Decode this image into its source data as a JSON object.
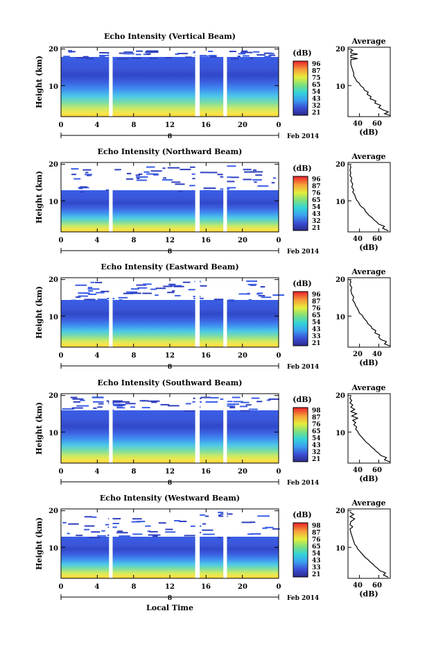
{
  "figure": {
    "bottom_xlabel": "Local Time",
    "date_label": "Feb 2014",
    "date_marker": "8"
  },
  "chart_data": [
    {
      "type": "heatmap",
      "title": "Echo Intensity (Vertical Beam)",
      "ylabel": "Height (km)",
      "xlabel": "",
      "x_ticks": [
        "0",
        "4",
        "8",
        "12",
        "16",
        "20",
        "0"
      ],
      "y_ticks": [
        "10",
        "20"
      ],
      "xlim": [
        0,
        24
      ],
      "ylim": [
        1.5,
        20.5
      ],
      "colorbar": {
        "unit": "(dB)",
        "ticks": [
          "96",
          "87",
          "75",
          "65",
          "54",
          "43",
          "32",
          "21"
        ]
      },
      "gaps_hours": [
        [
          5.3,
          5.7
        ],
        [
          14.8,
          15.3
        ],
        [
          17.9,
          18.3
        ]
      ],
      "profile": {
        "title": "Average",
        "xlabel": "(dB)",
        "x_ticks": [
          "40",
          "60"
        ],
        "xlim": [
          28,
          72
        ],
        "y_ticks": [
          "10",
          "20"
        ],
        "points": [
          [
            72,
            1.8
          ],
          [
            66,
            2.3
          ],
          [
            70,
            2.8
          ],
          [
            64,
            3.4
          ],
          [
            60,
            4.0
          ],
          [
            62,
            4.6
          ],
          [
            56,
            5.2
          ],
          [
            57,
            5.8
          ],
          [
            51,
            6.4
          ],
          [
            52,
            7.0
          ],
          [
            48,
            7.6
          ],
          [
            49,
            8.2
          ],
          [
            45,
            8.8
          ],
          [
            44,
            9.4
          ],
          [
            41,
            10.0
          ],
          [
            40,
            10.6
          ],
          [
            37,
            11.2
          ],
          [
            36,
            11.8
          ],
          [
            34,
            12.6
          ],
          [
            34,
            13.4
          ],
          [
            33,
            14.2
          ],
          [
            32,
            15.0
          ],
          [
            31,
            15.8
          ],
          [
            31,
            16.6
          ],
          [
            31,
            17.1
          ],
          [
            38,
            17.4
          ],
          [
            31,
            17.7
          ],
          [
            31,
            18.3
          ],
          [
            38,
            18.6
          ],
          [
            31,
            18.9
          ],
          [
            31,
            19.4
          ],
          [
            33,
            19.6
          ],
          [
            31,
            19.9
          ]
        ]
      }
    },
    {
      "type": "heatmap",
      "title": "Echo Intensity (Northward Beam)",
      "ylabel": "Height (km)",
      "xlabel": "",
      "x_ticks": [
        "0",
        "4",
        "8",
        "12",
        "16",
        "20",
        "0"
      ],
      "y_ticks": [
        "10",
        "20"
      ],
      "xlim": [
        0,
        24
      ],
      "ylim": [
        1.5,
        20.5
      ],
      "colorbar": {
        "unit": "(dB)",
        "ticks": [
          "96",
          "87",
          "76",
          "65",
          "54",
          "43",
          "32",
          "21"
        ]
      },
      "gaps_hours": [
        [
          5.3,
          5.7
        ],
        [
          14.8,
          15.3
        ],
        [
          17.9,
          18.3
        ]
      ],
      "profile": {
        "title": "Average",
        "xlabel": "(dB)",
        "x_ticks": [
          "40",
          "60"
        ],
        "xlim": [
          28,
          72
        ],
        "y_ticks": [
          "10",
          "20"
        ],
        "points": [
          [
            70,
            1.8
          ],
          [
            64,
            2.5
          ],
          [
            66,
            3.0
          ],
          [
            60,
            3.6
          ],
          [
            58,
            4.2
          ],
          [
            55,
            4.8
          ],
          [
            53,
            5.4
          ],
          [
            50,
            6.0
          ],
          [
            48,
            6.6
          ],
          [
            46,
            7.2
          ],
          [
            45,
            7.8
          ],
          [
            42,
            8.4
          ],
          [
            40,
            9.0
          ],
          [
            39,
            9.6
          ],
          [
            37,
            10.2
          ],
          [
            36,
            10.8
          ],
          [
            35,
            11.6
          ],
          [
            33,
            12.4
          ],
          [
            34,
            13.0
          ],
          [
            32,
            13.8
          ],
          [
            33,
            14.6
          ],
          [
            31,
            15.4
          ],
          [
            32,
            16.2
          ],
          [
            30,
            17.0
          ],
          [
            31,
            17.6
          ],
          [
            30,
            18.4
          ],
          [
            31,
            19.2
          ],
          [
            30,
            19.8
          ]
        ]
      }
    },
    {
      "type": "heatmap",
      "title": "Echo Intensity (Eastward Beam)",
      "ylabel": "Height (km)",
      "xlabel": "",
      "x_ticks": [
        "0",
        "4",
        "8",
        "12",
        "16",
        "20",
        "0"
      ],
      "y_ticks": [
        "10",
        "20"
      ],
      "xlim": [
        0,
        24
      ],
      "ylim": [
        1.5,
        20.5
      ],
      "colorbar": {
        "unit": "(dB)",
        "ticks": [
          "96",
          "87",
          "76",
          "65",
          "54",
          "43",
          "33",
          "21"
        ]
      },
      "gaps_hours": [
        [
          5.3,
          5.7
        ],
        [
          14.8,
          15.3
        ],
        [
          17.9,
          18.3
        ]
      ],
      "profile": {
        "title": "Average",
        "xlabel": "(dB)",
        "x_ticks": [
          "20",
          "40"
        ],
        "xlim": [
          8,
          52
        ],
        "y_ticks": [
          "10",
          "20"
        ],
        "points": [
          [
            52,
            1.8
          ],
          [
            46,
            2.4
          ],
          [
            48,
            3.0
          ],
          [
            42,
            3.6
          ],
          [
            40,
            4.2
          ],
          [
            41,
            4.8
          ],
          [
            36,
            5.4
          ],
          [
            37,
            6.0
          ],
          [
            33,
            6.6
          ],
          [
            32,
            7.2
          ],
          [
            29,
            7.8
          ],
          [
            28,
            8.4
          ],
          [
            26,
            9.0
          ],
          [
            24,
            9.6
          ],
          [
            23,
            10.2
          ],
          [
            20,
            10.8
          ],
          [
            19,
            11.4
          ],
          [
            18,
            12.0
          ],
          [
            16,
            12.8
          ],
          [
            15,
            13.6
          ],
          [
            13,
            14.4
          ],
          [
            14,
            15.2
          ],
          [
            12,
            16.0
          ],
          [
            11,
            17.0
          ],
          [
            12,
            17.8
          ],
          [
            10,
            18.6
          ],
          [
            11,
            19.4
          ],
          [
            10,
            19.9
          ]
        ]
      }
    },
    {
      "type": "heatmap",
      "title": "Echo Intensity (Southward Beam)",
      "ylabel": "Height (km)",
      "xlabel": "",
      "x_ticks": [
        "0",
        "4",
        "8",
        "12",
        "16",
        "20",
        "0"
      ],
      "y_ticks": [
        "10",
        "20"
      ],
      "xlim": [
        0,
        24
      ],
      "ylim": [
        1.5,
        20.5
      ],
      "colorbar": {
        "unit": "(dB)",
        "ticks": [
          "98",
          "87",
          "76",
          "65",
          "54",
          "43",
          "32",
          "21"
        ]
      },
      "gaps_hours": [
        [
          5.3,
          5.7
        ],
        [
          14.8,
          15.3
        ],
        [
          17.9,
          18.3
        ]
      ],
      "profile": {
        "title": "Average",
        "xlabel": "(dB)",
        "x_ticks": [
          "40",
          "60"
        ],
        "xlim": [
          28,
          72
        ],
        "y_ticks": [
          "10",
          "20"
        ],
        "points": [
          [
            72,
            1.8
          ],
          [
            66,
            2.4
          ],
          [
            68,
            3.0
          ],
          [
            62,
            3.6
          ],
          [
            60,
            4.2
          ],
          [
            57,
            4.8
          ],
          [
            55,
            5.4
          ],
          [
            52,
            6.0
          ],
          [
            50,
            6.6
          ],
          [
            47,
            7.2
          ],
          [
            45,
            7.8
          ],
          [
            43,
            8.4
          ],
          [
            41,
            9.0
          ],
          [
            39,
            9.6
          ],
          [
            38,
            10.2
          ],
          [
            36,
            10.8
          ],
          [
            37,
            11.4
          ],
          [
            34,
            12.0
          ],
          [
            36,
            12.6
          ],
          [
            33,
            13.2
          ],
          [
            38,
            13.8
          ],
          [
            32,
            14.4
          ],
          [
            37,
            15.0
          ],
          [
            31,
            15.6
          ],
          [
            35,
            16.2
          ],
          [
            31,
            16.8
          ],
          [
            33,
            17.4
          ],
          [
            30,
            18.0
          ],
          [
            32,
            18.6
          ],
          [
            30,
            19.2
          ],
          [
            31,
            19.8
          ]
        ]
      }
    },
    {
      "type": "heatmap",
      "title": "Echo Intensity (Westward Beam)",
      "ylabel": "Height (km)",
      "xlabel": "",
      "x_ticks": [
        "0",
        "4",
        "8",
        "12",
        "16",
        "20",
        "0"
      ],
      "y_ticks": [
        "10",
        "20"
      ],
      "xlim": [
        0,
        24
      ],
      "ylim": [
        1.5,
        20.5
      ],
      "colorbar": {
        "unit": "(dB)",
        "ticks": [
          "98",
          "87",
          "76",
          "65",
          "54",
          "43",
          "33",
          "21"
        ]
      },
      "gaps_hours": [
        [
          5.3,
          5.7
        ],
        [
          14.8,
          15.3
        ],
        [
          17.9,
          18.3
        ]
      ],
      "profile": {
        "title": "Average",
        "xlabel": "(dB)",
        "x_ticks": [
          "40",
          "60"
        ],
        "xlim": [
          28,
          72
        ],
        "y_ticks": [
          "10",
          "20"
        ],
        "points": [
          [
            70,
            1.8
          ],
          [
            65,
            2.4
          ],
          [
            67,
            3.0
          ],
          [
            61,
            3.6
          ],
          [
            59,
            4.2
          ],
          [
            56,
            4.8
          ],
          [
            54,
            5.4
          ],
          [
            51,
            6.0
          ],
          [
            49,
            6.6
          ],
          [
            46,
            7.2
          ],
          [
            44,
            7.8
          ],
          [
            42,
            8.4
          ],
          [
            40,
            9.0
          ],
          [
            38,
            9.6
          ],
          [
            37,
            10.2
          ],
          [
            35,
            10.8
          ],
          [
            34,
            11.6
          ],
          [
            33,
            12.4
          ],
          [
            32,
            13.2
          ],
          [
            31,
            14.0
          ],
          [
            30,
            15.0
          ],
          [
            33,
            15.6
          ],
          [
            30,
            16.2
          ],
          [
            31,
            17.0
          ],
          [
            35,
            17.8
          ],
          [
            30,
            18.4
          ],
          [
            34,
            19.0
          ],
          [
            30,
            19.6
          ]
        ]
      }
    }
  ]
}
